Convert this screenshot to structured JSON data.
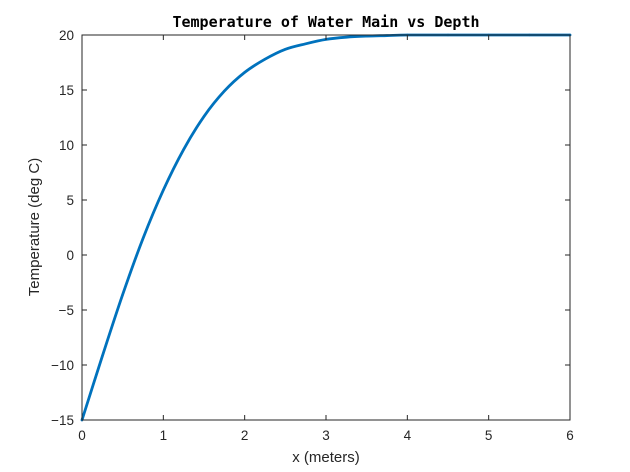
{
  "chart_data": {
    "type": "line",
    "title": "Temperature of Water Main vs Depth",
    "xlabel": "x (meters)",
    "ylabel": "Temperature (deg C)",
    "xlim": [
      0,
      6
    ],
    "ylim": [
      -15,
      20
    ],
    "xticks": [
      0,
      1,
      2,
      3,
      4,
      5,
      6
    ],
    "yticks": [
      -15,
      -10,
      -5,
      0,
      5,
      10,
      15,
      20
    ],
    "xtick_labels": [
      "0",
      "1",
      "2",
      "3",
      "4",
      "5",
      "6"
    ],
    "ytick_labels": [
      "−15",
      "−10",
      "−5",
      "0",
      "5",
      "10",
      "15",
      "20"
    ],
    "grid": false,
    "series": [
      {
        "color": "#0072bd",
        "x": [
          0,
          0.25,
          0.5,
          0.75,
          1,
          1.25,
          1.5,
          1.75,
          2,
          2.25,
          2.5,
          2.75,
          3,
          3.25,
          3.5,
          3.75,
          4,
          4.5,
          5,
          5.5,
          6
        ],
        "y": [
          -15,
          -9.2,
          -3.6,
          1.5,
          5.9,
          9.6,
          12.6,
          14.9,
          16.6,
          17.8,
          18.7,
          19.2,
          19.6,
          19.8,
          19.9,
          19.95,
          20,
          20,
          20,
          20,
          20
        ]
      }
    ]
  }
}
